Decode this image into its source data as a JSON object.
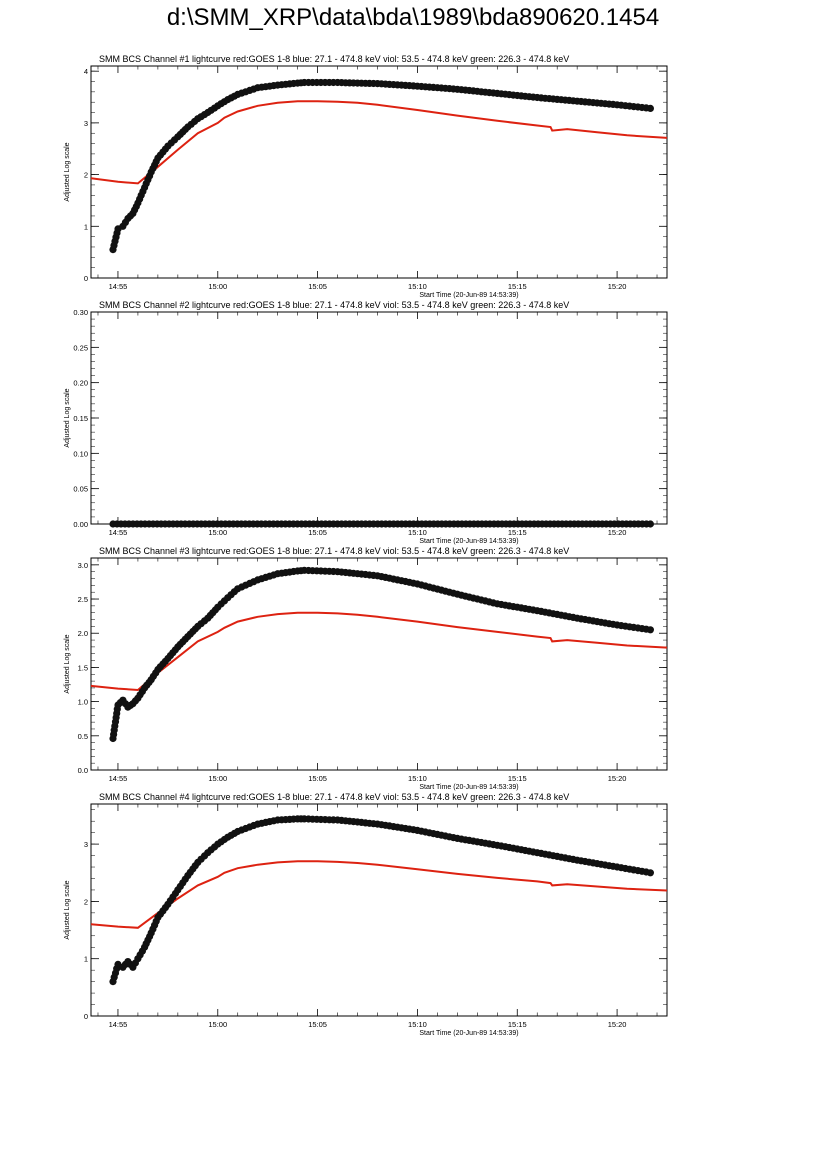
{
  "page": {
    "title": "d:\\SMM_XRP\\data\\bda\\1989\\bda890620.1454"
  },
  "colors": {
    "goes": "#dd2211",
    "channel": "#111111"
  },
  "chart_data": [
    {
      "type": "line",
      "title": "SMM BCS Channel #1 lightcurve  red:GOES 1-8  blue: 27.1 - 474.8 keV  viol: 53.5 - 474.8 keV  green: 226.3 - 474.8 keV",
      "xlabel": "Start Time (20-Jun-89 14:53:39)",
      "ylabel": "Adjusted Log scale",
      "x_ticks": [
        "14:55",
        "15:00",
        "15:05",
        "15:10",
        "15:15",
        "15:20"
      ],
      "y_ticks": [
        "0",
        "1",
        "2",
        "3",
        "4"
      ],
      "xlim": [
        "14:53:39",
        "15:22:30"
      ],
      "ylim": [
        0,
        4.1
      ],
      "grid": false,
      "series": [
        {
          "color": "#dd2211",
          "x": [
            "14:53:39",
            "14:55:00",
            "14:56:00",
            "14:57:00",
            "14:58:00",
            "14:59:00",
            "15:00:00",
            "15:00:20",
            "15:01:00",
            "15:02:00",
            "15:03:00",
            "15:04:00",
            "15:05:00",
            "15:06:00",
            "15:07:00",
            "15:08:00",
            "15:10:00",
            "15:12:00",
            "15:14:00",
            "15:16:00",
            "15:16:40",
            "15:16:45",
            "15:17:30",
            "15:19:00",
            "15:20:30",
            "15:22:30"
          ],
          "y": [
            1.93,
            1.86,
            1.83,
            2.15,
            2.48,
            2.8,
            3.0,
            3.1,
            3.22,
            3.33,
            3.39,
            3.42,
            3.42,
            3.41,
            3.39,
            3.35,
            3.25,
            3.14,
            3.04,
            2.95,
            2.92,
            2.85,
            2.88,
            2.82,
            2.76,
            2.71
          ]
        },
        {
          "color": "#111111",
          "x": [
            "14:54:45",
            "14:55:00",
            "14:55:15",
            "14:55:30",
            "14:55:45",
            "14:56:00",
            "14:56:20",
            "14:56:40",
            "14:57:00",
            "14:57:30",
            "14:58:00",
            "14:58:30",
            "14:59:00",
            "14:59:30",
            "15:00:00",
            "15:00:30",
            "15:01:00",
            "15:02:00",
            "15:03:00",
            "15:04:00",
            "15:04:20",
            "15:06:00",
            "15:08:00",
            "15:10:00",
            "15:12:00",
            "15:14:00",
            "15:16:00",
            "15:18:00",
            "15:20:00",
            "15:21:40"
          ],
          "y": [
            0.55,
            0.95,
            1.0,
            1.15,
            1.25,
            1.45,
            1.75,
            2.05,
            2.32,
            2.55,
            2.73,
            2.92,
            3.08,
            3.2,
            3.33,
            3.45,
            3.55,
            3.68,
            3.73,
            3.77,
            3.78,
            3.78,
            3.76,
            3.71,
            3.65,
            3.57,
            3.49,
            3.42,
            3.35,
            3.28
          ]
        }
      ]
    },
    {
      "type": "line",
      "title": "SMM BCS Channel #2 lightcurve  red:GOES 1-8  blue: 27.1 - 474.8 keV  viol: 53.5 - 474.8 keV  green: 226.3 - 474.8 keV",
      "xlabel": "Start Time (20-Jun-89 14:53:39)",
      "ylabel": "Adjusted Log scale",
      "x_ticks": [
        "14:55",
        "15:00",
        "15:05",
        "15:10",
        "15:15",
        "15:20"
      ],
      "y_ticks": [
        "0.00",
        "0.05",
        "0.10",
        "0.15",
        "0.20",
        "0.25",
        "0.30"
      ],
      "xlim": [
        "14:53:39",
        "15:22:30"
      ],
      "ylim": [
        0,
        0.3
      ],
      "grid": false,
      "series": [
        {
          "color": "#111111",
          "x": [
            "14:54:45",
            "15:21:40"
          ],
          "y": [
            0.0,
            0.0
          ]
        }
      ]
    },
    {
      "type": "line",
      "title": "SMM BCS Channel #3 lightcurve  red:GOES 1-8  blue: 27.1 - 474.8 keV  viol: 53.5 - 474.8 keV  green: 226.3 - 474.8 keV",
      "xlabel": "Start Time (20-Jun-89 14:53:39)",
      "ylabel": "Adjusted Log scale",
      "x_ticks": [
        "14:55",
        "15:00",
        "15:05",
        "15:10",
        "15:15",
        "15:20"
      ],
      "y_ticks": [
        "0.0",
        "0.5",
        "1.0",
        "1.5",
        "2.0",
        "2.5",
        "3.0"
      ],
      "xlim": [
        "14:53:39",
        "15:22:30"
      ],
      "ylim": [
        0,
        3.1
      ],
      "grid": false,
      "series": [
        {
          "color": "#dd2211",
          "x": [
            "14:53:39",
            "14:55:00",
            "14:56:00",
            "14:57:00",
            "14:58:00",
            "14:59:00",
            "15:00:00",
            "15:00:20",
            "15:01:00",
            "15:02:00",
            "15:03:00",
            "15:04:00",
            "15:05:00",
            "15:06:00",
            "15:07:00",
            "15:08:00",
            "15:10:00",
            "15:12:00",
            "15:14:00",
            "15:16:00",
            "15:16:40",
            "15:16:45",
            "15:17:30",
            "15:19:00",
            "15:20:30",
            "15:22:30"
          ],
          "y": [
            1.23,
            1.19,
            1.17,
            1.42,
            1.65,
            1.88,
            2.02,
            2.08,
            2.17,
            2.24,
            2.28,
            2.3,
            2.3,
            2.29,
            2.27,
            2.24,
            2.17,
            2.09,
            2.02,
            1.95,
            1.93,
            1.88,
            1.9,
            1.86,
            1.82,
            1.79
          ]
        },
        {
          "color": "#111111",
          "x": [
            "14:54:45",
            "14:55:00",
            "14:55:15",
            "14:55:30",
            "14:55:45",
            "14:56:00",
            "14:56:20",
            "14:56:40",
            "14:57:00",
            "14:57:30",
            "14:58:00",
            "14:58:30",
            "14:59:00",
            "14:59:30",
            "15:00:00",
            "15:00:30",
            "15:01:00",
            "15:02:00",
            "15:03:00",
            "15:04:00",
            "15:04:20",
            "15:06:00",
            "15:08:00",
            "15:10:00",
            "15:12:00",
            "15:14:00",
            "15:16:00",
            "15:18:00",
            "15:20:00",
            "15:21:40"
          ],
          "y": [
            0.46,
            0.95,
            1.02,
            0.92,
            0.97,
            1.05,
            1.2,
            1.32,
            1.47,
            1.63,
            1.8,
            1.95,
            2.1,
            2.22,
            2.38,
            2.52,
            2.65,
            2.78,
            2.87,
            2.91,
            2.92,
            2.9,
            2.84,
            2.72,
            2.57,
            2.43,
            2.33,
            2.22,
            2.12,
            2.05
          ]
        }
      ]
    },
    {
      "type": "line",
      "title": "SMM BCS Channel #4 lightcurve  red:GOES 1-8  blue: 27.1 - 474.8 keV  viol: 53.5 - 474.8 keV  green: 226.3 - 474.8 keV",
      "xlabel": "Start Time (20-Jun-89 14:53:39)",
      "ylabel": "Adjusted Log scale",
      "x_ticks": [
        "14:55",
        "15:00",
        "15:05",
        "15:10",
        "15:15",
        "15:20"
      ],
      "y_ticks": [
        "0",
        "1",
        "2",
        "3"
      ],
      "xlim": [
        "14:53:39",
        "15:22:30"
      ],
      "ylim": [
        0,
        3.7
      ],
      "grid": false,
      "series": [
        {
          "color": "#dd2211",
          "x": [
            "14:53:39",
            "14:55:00",
            "14:56:00",
            "14:57:00",
            "14:58:00",
            "14:59:00",
            "15:00:00",
            "15:00:20",
            "15:01:00",
            "15:02:00",
            "15:03:00",
            "15:04:00",
            "15:05:00",
            "15:06:00",
            "15:07:00",
            "15:08:00",
            "15:10:00",
            "15:12:00",
            "15:14:00",
            "15:16:00",
            "15:16:40",
            "15:16:45",
            "15:17:30",
            "15:19:00",
            "15:20:30",
            "15:22:30"
          ],
          "y": [
            1.6,
            1.56,
            1.54,
            1.8,
            2.05,
            2.28,
            2.43,
            2.5,
            2.58,
            2.64,
            2.68,
            2.7,
            2.7,
            2.69,
            2.67,
            2.64,
            2.56,
            2.48,
            2.41,
            2.35,
            2.32,
            2.28,
            2.3,
            2.26,
            2.22,
            2.19
          ]
        },
        {
          "color": "#111111",
          "x": [
            "14:54:45",
            "14:55:00",
            "14:55:15",
            "14:55:30",
            "14:55:45",
            "14:56:00",
            "14:56:20",
            "14:56:40",
            "14:57:00",
            "14:57:30",
            "14:58:00",
            "14:58:30",
            "14:59:00",
            "14:59:30",
            "15:00:00",
            "15:00:30",
            "15:01:00",
            "15:02:00",
            "15:03:00",
            "15:04:00",
            "15:04:20",
            "15:06:00",
            "15:08:00",
            "15:10:00",
            "15:12:00",
            "15:14:00",
            "15:16:00",
            "15:18:00",
            "15:20:00",
            "15:21:40"
          ],
          "y": [
            0.6,
            0.9,
            0.85,
            0.95,
            0.85,
            1.0,
            1.2,
            1.45,
            1.72,
            1.95,
            2.2,
            2.45,
            2.68,
            2.85,
            3.0,
            3.12,
            3.22,
            3.35,
            3.42,
            3.44,
            3.44,
            3.42,
            3.35,
            3.24,
            3.1,
            2.98,
            2.85,
            2.72,
            2.6,
            2.5
          ]
        }
      ]
    }
  ]
}
